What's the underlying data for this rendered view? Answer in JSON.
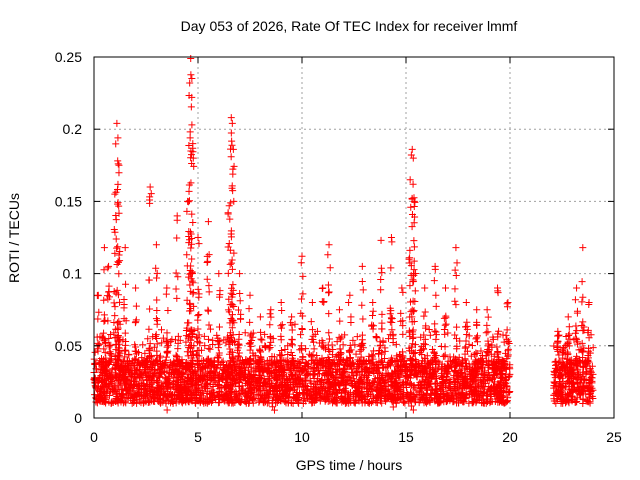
{
  "chart_data": {
    "type": "scatter",
    "title": "Day 053 of 2026, Rate Of TEC Index for receiver lmmf",
    "xlabel": "GPS time / hours",
    "ylabel": "ROTI / TECUs",
    "xlim": [
      0,
      25
    ],
    "ylim": [
      0,
      0.25
    ],
    "xticks": [
      0,
      5,
      10,
      15,
      20,
      25
    ],
    "xtick_labels": [
      "0",
      "5",
      "10",
      "15",
      "20",
      "25"
    ],
    "yticks": [
      0,
      0.05,
      0.1,
      0.15,
      0.2,
      0.25
    ],
    "ytick_labels": [
      "0",
      "0.05",
      "0.1",
      "0.15",
      "0.2",
      "0.25"
    ],
    "grid": true,
    "marker": "plus",
    "color": "#ff0000",
    "series": [
      {
        "name": "ROTI",
        "segments": [
          [
            0.0,
            20.0
          ],
          [
            22.1,
            24.0
          ]
        ],
        "baseline_range": [
          0.01,
          0.04
        ],
        "peaks": [
          {
            "x": 0.2,
            "y": 0.085
          },
          {
            "x": 0.5,
            "y": 0.118
          },
          {
            "x": 0.7,
            "y": 0.105
          },
          {
            "x": 1.0,
            "y": 0.155
          },
          {
            "x": 1.1,
            "y": 0.204
          },
          {
            "x": 1.15,
            "y": 0.194
          },
          {
            "x": 1.2,
            "y": 0.175
          },
          {
            "x": 1.5,
            "y": 0.118
          },
          {
            "x": 2.0,
            "y": 0.09
          },
          {
            "x": 2.7,
            "y": 0.16
          },
          {
            "x": 3.0,
            "y": 0.12
          },
          {
            "x": 3.5,
            "y": 0.09
          },
          {
            "x": 4.0,
            "y": 0.14
          },
          {
            "x": 4.5,
            "y": 0.15
          },
          {
            "x": 4.6,
            "y": 0.232
          },
          {
            "x": 4.65,
            "y": 0.249
          },
          {
            "x": 4.7,
            "y": 0.222
          },
          {
            "x": 4.75,
            "y": 0.19
          },
          {
            "x": 5.0,
            "y": 0.125
          },
          {
            "x": 5.5,
            "y": 0.136
          },
          {
            "x": 6.0,
            "y": 0.1
          },
          {
            "x": 6.5,
            "y": 0.147
          },
          {
            "x": 6.6,
            "y": 0.208
          },
          {
            "x": 6.65,
            "y": 0.204
          },
          {
            "x": 6.7,
            "y": 0.186
          },
          {
            "x": 7.0,
            "y": 0.1
          },
          {
            "x": 7.5,
            "y": 0.085
          },
          {
            "x": 8.0,
            "y": 0.07
          },
          {
            "x": 8.5,
            "y": 0.075
          },
          {
            "x": 9.0,
            "y": 0.08
          },
          {
            "x": 9.5,
            "y": 0.07
          },
          {
            "x": 10.0,
            "y": 0.112
          },
          {
            "x": 10.5,
            "y": 0.08
          },
          {
            "x": 11.0,
            "y": 0.09
          },
          {
            "x": 11.3,
            "y": 0.12
          },
          {
            "x": 11.8,
            "y": 0.075
          },
          {
            "x": 12.3,
            "y": 0.085
          },
          {
            "x": 12.9,
            "y": 0.105
          },
          {
            "x": 13.4,
            "y": 0.08
          },
          {
            "x": 13.8,
            "y": 0.123
          },
          {
            "x": 14.3,
            "y": 0.125
          },
          {
            "x": 14.8,
            "y": 0.09
          },
          {
            "x": 15.2,
            "y": 0.165
          },
          {
            "x": 15.3,
            "y": 0.186
          },
          {
            "x": 15.35,
            "y": 0.18
          },
          {
            "x": 15.4,
            "y": 0.15
          },
          {
            "x": 15.9,
            "y": 0.09
          },
          {
            "x": 16.4,
            "y": 0.105
          },
          {
            "x": 16.9,
            "y": 0.09
          },
          {
            "x": 17.4,
            "y": 0.118
          },
          {
            "x": 17.9,
            "y": 0.08
          },
          {
            "x": 18.4,
            "y": 0.075
          },
          {
            "x": 18.9,
            "y": 0.075
          },
          {
            "x": 19.4,
            "y": 0.09
          },
          {
            "x": 19.9,
            "y": 0.08
          },
          {
            "x": 22.3,
            "y": 0.06
          },
          {
            "x": 22.8,
            "y": 0.07
          },
          {
            "x": 23.2,
            "y": 0.09
          },
          {
            "x": 23.5,
            "y": 0.118
          },
          {
            "x": 23.8,
            "y": 0.08
          }
        ]
      }
    ]
  }
}
